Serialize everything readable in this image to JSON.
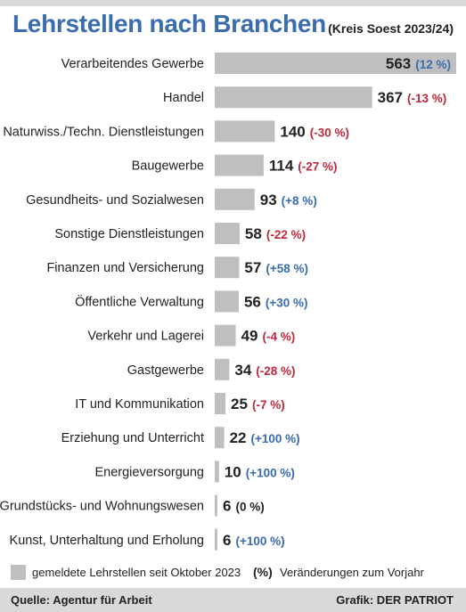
{
  "chart_data": {
    "type": "bar",
    "orientation": "horizontal",
    "title": "Lehrstellen nach Branchen",
    "subtitle": "(Kreis Soest 2023/24)",
    "categories": [
      "Verarbeitendes Gewerbe",
      "Handel",
      "Naturwiss./Techn. Dienstleistungen",
      "Baugewerbe",
      "Gesundheits- und Sozialwesen",
      "Sonstige Dienstleistungen",
      "Finanzen und Versicherung",
      "Öffentliche Verwaltung",
      "Verkehr und Lagerei",
      "Gastgewerbe",
      "IT und Kommunikation",
      "Erziehung und Unterricht",
      "Energieversorgung",
      "Grundstücks- und Wohnungswesen",
      "Kunst, Unterhaltung und Erholung"
    ],
    "values": [
      563,
      367,
      140,
      114,
      93,
      58,
      57,
      56,
      49,
      34,
      25,
      22,
      10,
      6,
      6
    ],
    "value_labels": [
      "563",
      "367",
      "140",
      "114",
      "93",
      "58",
      "57",
      "56",
      "49",
      "34",
      "25",
      "22",
      "10",
      "6",
      "6"
    ],
    "changes": [
      "(12 %)",
      "(-13 %)",
      "(-30 %)",
      "(-27 %)",
      "(+8 %)",
      "(-22 %)",
      "(+58 %)",
      "(+30 %)",
      "(-4 %)",
      "(-28 %)",
      "(-7 %)",
      "(+100 %)",
      "(+100 %)",
      "(0 %)",
      "(+100 %)"
    ],
    "change_values": [
      12,
      -13,
      -30,
      -27,
      8,
      -22,
      58,
      30,
      -4,
      -28,
      -7,
      100,
      100,
      0,
      100
    ],
    "xlim": [
      0,
      563
    ],
    "grid": false,
    "legend_placement": "bottom"
  },
  "legend": {
    "bar_label": "gemeldete Lehrstellen seit Oktober 2023",
    "pct_symbol": "(%)",
    "pct_label": "Veränderungen zum Vorjahr"
  },
  "footer": {
    "source": "Quelle: Agentur für Arbeit",
    "credit": "Grafik: DER PATRIOT"
  },
  "colors": {
    "title": "#3a6cb0",
    "bar": "#bfbfbf",
    "positive": "#3a6cb0",
    "negative": "#c0283c",
    "neutral": "#222222",
    "footer_bg": "#d9d9d9"
  }
}
